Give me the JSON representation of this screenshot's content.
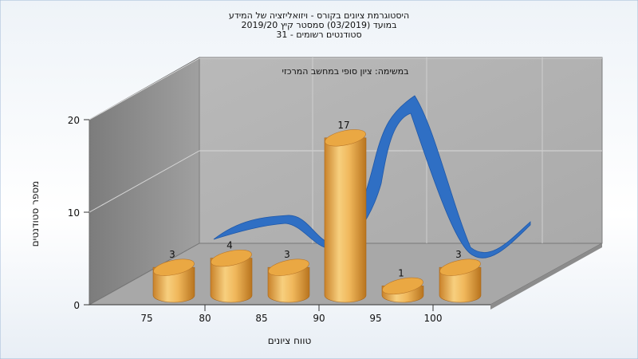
{
  "chart_data": {
    "type": "bar",
    "title_lines": [
      "היסטוגרמת ציונים בקורס - ויזואליזציה של המידע",
      "במועד  (03/2019)  סמסטר קיץ 2019/20",
      "31 - סטודנטים רשומים"
    ],
    "subtitle": "במשימה: ציון סופי במחשב המרכזי",
    "xlabel": "טווח ציונים",
    "ylabel": "מספר סטודנטים",
    "categories": [
      "75",
      "80",
      "85",
      "90",
      "95",
      "100"
    ],
    "values": [
      3,
      4,
      3,
      17,
      1,
      3
    ],
    "y_ticks": [
      "0",
      "10",
      "20"
    ],
    "ylim": [
      0,
      20
    ],
    "grid": true,
    "style": "3d-cylinders-with-curve",
    "colors": {
      "bar": "#e8a640",
      "curve": "#2f6fc4",
      "back_wall": "#b5b5b5",
      "side_wall": "#8a8a8a",
      "floor": "#a9a9a9"
    }
  }
}
